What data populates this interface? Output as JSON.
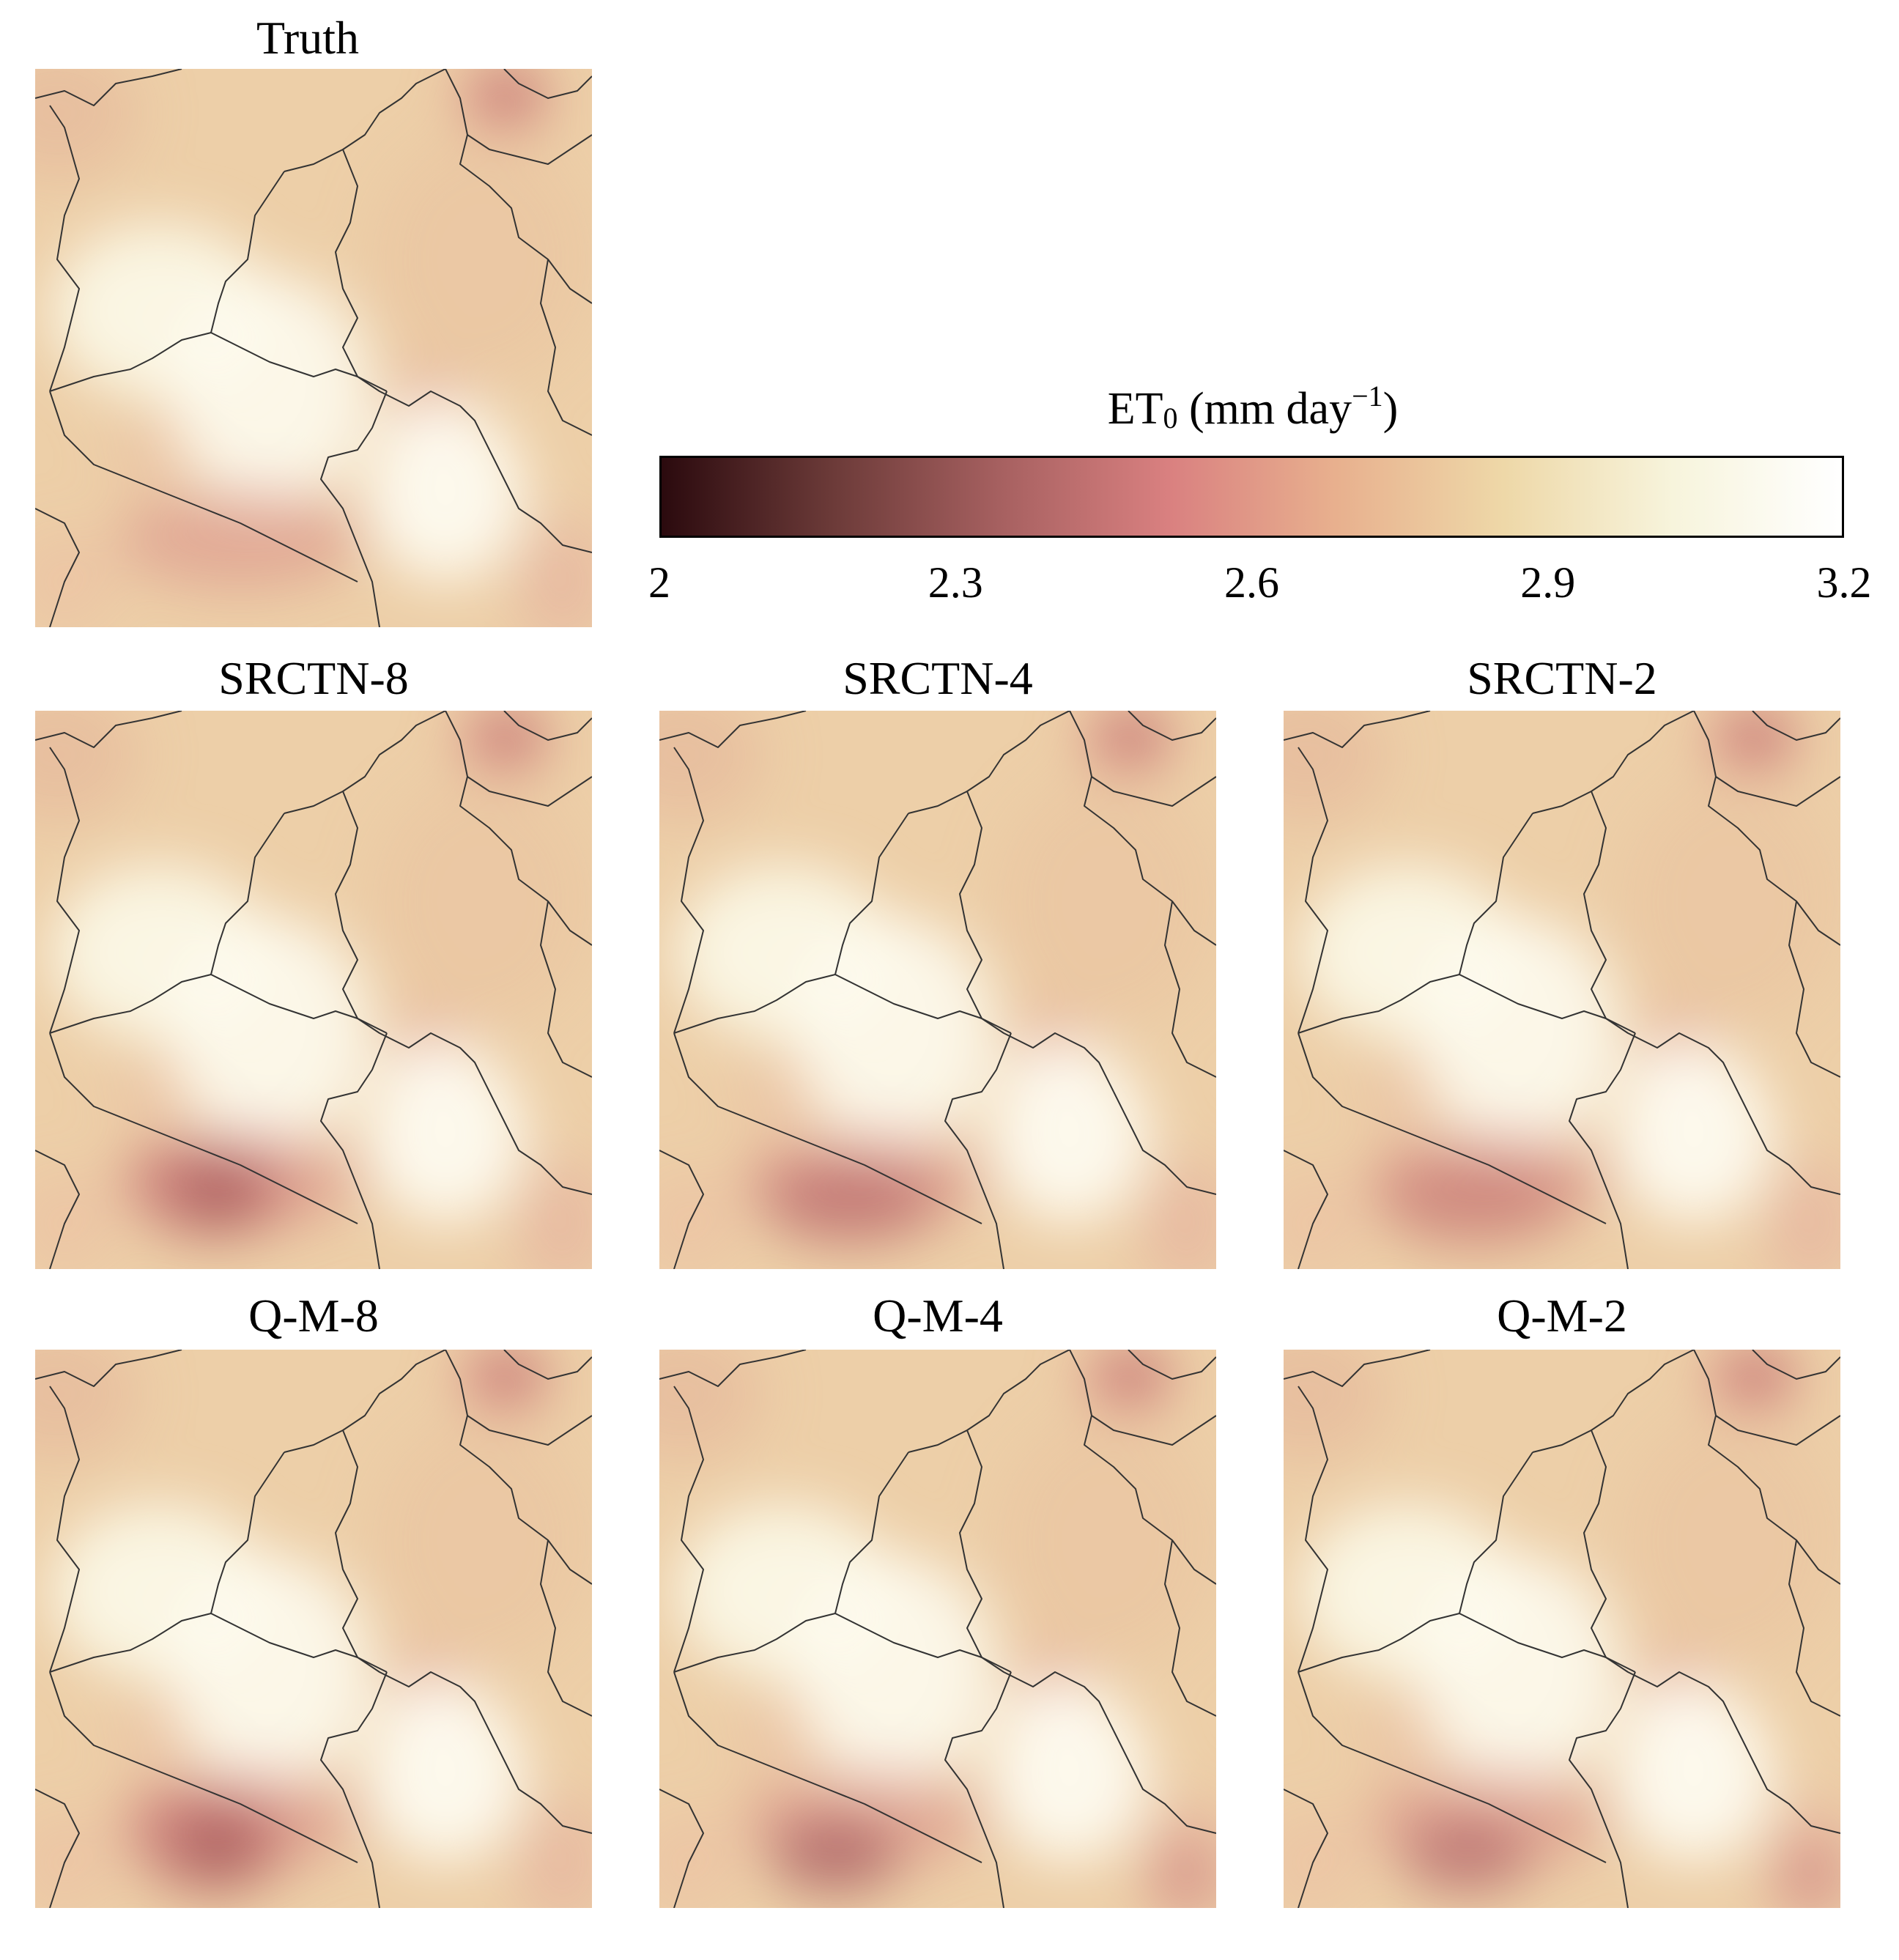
{
  "panels": [
    {
      "id": "truth",
      "title": "Truth",
      "variant": 0
    },
    {
      "id": "srctn-8",
      "title": "SRCTN-8",
      "variant": 1
    },
    {
      "id": "srctn-4",
      "title": "SRCTN-4",
      "variant": 2
    },
    {
      "id": "srctn-2",
      "title": "SRCTN-2",
      "variant": 3
    },
    {
      "id": "qm-8",
      "title": "Q-M-8",
      "variant": 4
    },
    {
      "id": "qm-4",
      "title": "Q-M-4",
      "variant": 5
    },
    {
      "id": "qm-2",
      "title": "Q-M-2",
      "variant": 6
    }
  ],
  "colorbar": {
    "label_base": "ET",
    "label_sub": "0",
    "label_unit_open": " (mm day",
    "label_sup": "−1",
    "label_unit_close": ")",
    "min": 2,
    "max": 3.2,
    "ticks": [
      "2",
      "2.3",
      "2.6",
      "2.9",
      "3.2"
    ],
    "tick_values": [
      2,
      2.3,
      2.6,
      2.9,
      3.2
    ],
    "colors": [
      "#2b0a0e",
      "#6b3a38",
      "#a66060",
      "#d98080",
      "#e8b08e",
      "#eed8a8",
      "#f7f4dc",
      "#ffffff"
    ]
  },
  "border_color": "#333333"
}
